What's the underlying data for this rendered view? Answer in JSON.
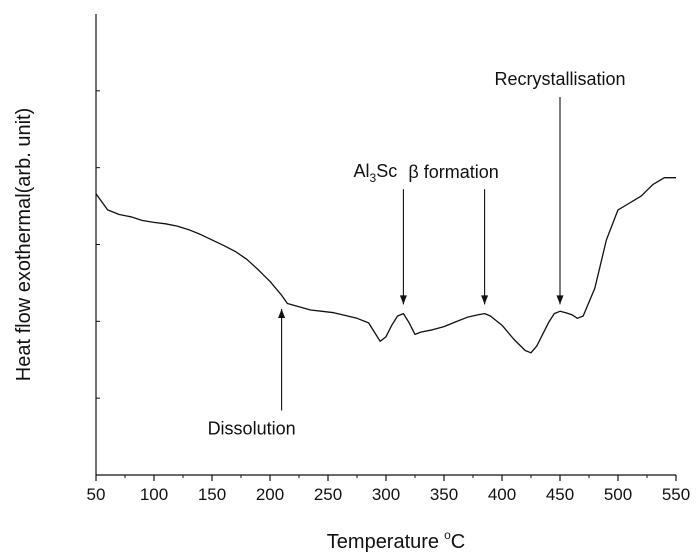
{
  "chart_data": {
    "type": "line",
    "xlabel": "Temperature",
    "xlabel_unit_sup": "o",
    "xlabel_unit": "C",
    "ylabel": "Heat flow exothermal(arb. unit)",
    "xlim": [
      50,
      550
    ],
    "ylim": [
      0,
      1
    ],
    "x_ticks": [
      "50",
      "100",
      "150",
      "200",
      "250",
      "300",
      "350",
      "400",
      "450",
      "500",
      "550"
    ],
    "y_ticks_labeled": false,
    "grid": false,
    "series": [
      {
        "color": "#111111",
        "x": [
          50,
          60,
          70,
          80,
          90,
          100,
          110,
          120,
          130,
          140,
          150,
          160,
          170,
          180,
          190,
          200,
          210,
          215,
          225,
          235,
          245,
          255,
          265,
          275,
          285,
          290,
          295,
          300,
          305,
          310,
          315,
          320,
          325,
          330,
          340,
          350,
          360,
          370,
          380,
          385,
          390,
          400,
          410,
          420,
          425,
          430,
          440,
          445,
          450,
          455,
          460,
          465,
          470,
          480,
          490,
          500,
          510,
          520,
          530,
          540,
          550
        ],
        "y": [
          0.61,
          0.575,
          0.565,
          0.56,
          0.552,
          0.548,
          0.545,
          0.54,
          0.532,
          0.522,
          0.51,
          0.498,
          0.485,
          0.468,
          0.445,
          0.42,
          0.39,
          0.372,
          0.365,
          0.358,
          0.355,
          0.352,
          0.346,
          0.34,
          0.33,
          0.31,
          0.29,
          0.3,
          0.325,
          0.345,
          0.35,
          0.33,
          0.305,
          0.31,
          0.315,
          0.322,
          0.332,
          0.342,
          0.348,
          0.35,
          0.345,
          0.325,
          0.295,
          0.27,
          0.265,
          0.28,
          0.33,
          0.35,
          0.355,
          0.352,
          0.348,
          0.34,
          0.345,
          0.405,
          0.51,
          0.575,
          0.59,
          0.605,
          0.63,
          0.645,
          0.645
        ]
      }
    ],
    "annotations": [
      {
        "id": "dissolution",
        "text": "Dissolution",
        "x": 210,
        "tip_y": 0.36,
        "tail_y": 0.14,
        "direction": "up"
      },
      {
        "id": "al3sc",
        "text": "Al",
        "sub": "3",
        "text_after": "Sc",
        "x": 315,
        "tip_y": 0.37,
        "tail_y": 0.62,
        "direction": "down"
      },
      {
        "id": "beta",
        "text": "β formation",
        "x": 385,
        "tip_y": 0.37,
        "tail_y": 0.62,
        "direction": "down"
      },
      {
        "id": "recrystallisation",
        "text": "Recrystallisation",
        "x": 450,
        "tip_y": 0.37,
        "tail_y": 0.82,
        "direction": "down"
      }
    ]
  }
}
